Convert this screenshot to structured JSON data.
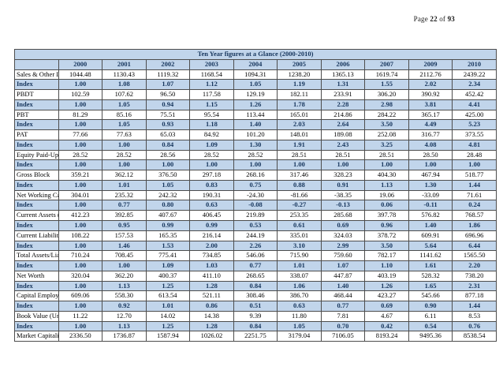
{
  "page": {
    "page_label": "Page",
    "page_number": "22",
    "of_label": "of",
    "total_pages": "93"
  },
  "colors": {
    "row_accent_blue": "#c1d5eb",
    "accent_navy_text": "#17365d",
    "body_text": "#000000",
    "grid_border": "#4d4d4d",
    "page_background": "#ffffff"
  },
  "table": {
    "title": "Ten Year figures at a Glance (2000-2010)",
    "years": [
      "2000",
      "2001",
      "2002",
      "2003",
      "2004",
      "2005",
      "2006",
      "2007",
      "2009",
      "2010"
    ],
    "rows": [
      {
        "label": "Sales & Other Income",
        "type": "metric",
        "values": [
          "1044.48",
          "1130.43",
          "1119.32",
          "1168.54",
          "1094.31",
          "1238.20",
          "1365.13",
          "1619.74",
          "2112.76",
          "2439.22"
        ]
      },
      {
        "label": "Index",
        "type": "index",
        "values": [
          "1.00",
          "1.08",
          "1.07",
          "1.12",
          "1.05",
          "1.19",
          "1.31",
          "1.55",
          "2.02",
          "2.34"
        ]
      },
      {
        "label": "PBDT",
        "type": "metric",
        "values": [
          "102.59",
          "107.62",
          "96.50",
          "117.58",
          "129.19",
          "182.11",
          "233.91",
          "306.20",
          "390.92",
          "452.42"
        ]
      },
      {
        "label": "Index",
        "type": "index",
        "values": [
          "1.00",
          "1.05",
          "0.94",
          "1.15",
          "1.26",
          "1.78",
          "2.28",
          "2.98",
          "3.81",
          "4.41"
        ]
      },
      {
        "label": "PBT",
        "type": "metric",
        "values": [
          "81.29",
          "85.16",
          "75.51",
          "95.54",
          "113.44",
          "165.01",
          "214.86",
          "284.22",
          "365.17",
          "425.00"
        ]
      },
      {
        "label": "Index",
        "type": "index",
        "values": [
          "1.00",
          "1.05",
          "0.93",
          "1.18",
          "1.40",
          "2.03",
          "2.64",
          "3.50",
          "4.49",
          "5.23"
        ]
      },
      {
        "label": "PAT",
        "type": "metric",
        "values": [
          "77.66",
          "77.63",
          "65.03",
          "84.92",
          "101.20",
          "148.01",
          "189.08",
          "252.08",
          "316.77",
          "373.55"
        ]
      },
      {
        "label": "Index",
        "type": "index",
        "values": [
          "1.00",
          "1.00",
          "0.84",
          "1.09",
          "1.30",
          "1.91",
          "2.43",
          "3.25",
          "4.08",
          "4.81"
        ]
      },
      {
        "label": "Equity Paid-Up",
        "type": "metric",
        "values": [
          "28.52",
          "28.52",
          "28.56",
          "28.52",
          "28.52",
          "28.51",
          "28.51",
          "28.51",
          "28.50",
          "28.48"
        ]
      },
      {
        "label": "Index",
        "type": "index",
        "values": [
          "1.00",
          "1.00",
          "1.00",
          "1.00",
          "1.00",
          "1.00",
          "1.00",
          "1.00",
          "1.00",
          "1.00"
        ]
      },
      {
        "label": "Gross Block",
        "type": "metric",
        "values": [
          "359.21",
          "362.12",
          "376.50",
          "297.18",
          "268.16",
          "317.46",
          "328.23",
          "404.30",
          "467.94",
          "518.77"
        ]
      },
      {
        "label": "Index",
        "type": "index",
        "values": [
          "1.00",
          "1.01",
          "1.05",
          "0.83",
          "0.75",
          "0.88",
          "0.91",
          "1.13",
          "1.30",
          "1.44"
        ]
      },
      {
        "label": "Net Working Capital ( Incl. Def. Tax)",
        "type": "metric",
        "values": [
          "304.01",
          "235.32",
          "242.32",
          "190.31",
          "-24.30",
          "-81.66",
          "-38.35",
          "19.06",
          "-33.09",
          "71.61"
        ]
      },
      {
        "label": "Index",
        "type": "index",
        "values": [
          "1.00",
          "0.77",
          "0.80",
          "0.63",
          "-0.08",
          "-0.27",
          "-0.13",
          "0.06",
          "-0.11",
          "0.24"
        ]
      },
      {
        "label": "Current Assets ( Incl. Def. Tax)",
        "type": "metric",
        "values": [
          "412.23",
          "392.85",
          "407.67",
          "406.45",
          "219.89",
          "253.35",
          "285.68",
          "397.78",
          "576.82",
          "768.57"
        ]
      },
      {
        "label": "Index",
        "type": "index",
        "values": [
          "1.00",
          "0.95",
          "0.99",
          "0.99",
          "0.53",
          "0.61",
          "0.69",
          "0.96",
          "1.40",
          "1.86"
        ]
      },
      {
        "label": "Current Liabilities and Provisions ( Incl. Def. Tax)",
        "type": "metric",
        "values": [
          "108.22",
          "157.53",
          "165.35",
          "216.14",
          "244.19",
          "335.01",
          "324.03",
          "378.72",
          "609.91",
          "696.96"
        ]
      },
      {
        "label": "Index",
        "type": "index",
        "values": [
          "1.00",
          "1.46",
          "1.53",
          "2.00",
          "2.26",
          "3.10",
          "2.99",
          "3.50",
          "5.64",
          "6.44"
        ]
      },
      {
        "label": "Total Assets/Liabilities (excl Reval & W.off)",
        "type": "metric",
        "values": [
          "710.24",
          "708.45",
          "775.41",
          "734.85",
          "546.06",
          "715.90",
          "759.60",
          "782.17",
          "1141.62",
          "1565.50"
        ]
      },
      {
        "label": "Index",
        "type": "index",
        "values": [
          "1.00",
          "1.00",
          "1.09",
          "1.03",
          "0.77",
          "1.01",
          "1.07",
          "1.10",
          "1.61",
          "2.20"
        ]
      },
      {
        "label": "Net Worth",
        "type": "metric",
        "values": [
          "320.04",
          "362.20",
          "400.37",
          "411.10",
          "268.65",
          "338.07",
          "447.87",
          "403.19",
          "528.32",
          "738.20"
        ]
      },
      {
        "label": "Index",
        "type": "index",
        "values": [
          "1.00",
          "1.13",
          "1.25",
          "1.28",
          "0.84",
          "1.06",
          "1.40",
          "1.26",
          "1.65",
          "2.31"
        ]
      },
      {
        "label": "Capital Employed",
        "type": "metric",
        "values": [
          "609.06",
          "558.30",
          "613.54",
          "521.11",
          "308.46",
          "386.70",
          "468.44",
          "423.27",
          "545.66",
          "877.18"
        ]
      },
      {
        "label": "Index",
        "type": "index",
        "values": [
          "1.00",
          "0.92",
          "1.01",
          "0.86",
          "0.51",
          "0.63",
          "0.77",
          "0.69",
          "0.90",
          "1.44"
        ]
      },
      {
        "label": "Book Value (Unit Curr)",
        "type": "metric",
        "values": [
          "11.22",
          "12.70",
          "14.02",
          "14.38",
          "9.39",
          "11.80",
          "7.81",
          "4.67",
          "6.11",
          "8.53"
        ]
      },
      {
        "label": "Index",
        "type": "index",
        "values": [
          "1.00",
          "1.13",
          "1.25",
          "1.28",
          "0.84",
          "1.05",
          "0.70",
          "0.42",
          "0.54",
          "0.76"
        ]
      },
      {
        "label": "Market Capitalisation",
        "type": "metric",
        "values": [
          "2336.50",
          "1736.87",
          "1587.94",
          "1026.02",
          "2251.75",
          "3179.04",
          "7106.05",
          "8193.24",
          "9495.36",
          "8538.54"
        ]
      }
    ]
  }
}
